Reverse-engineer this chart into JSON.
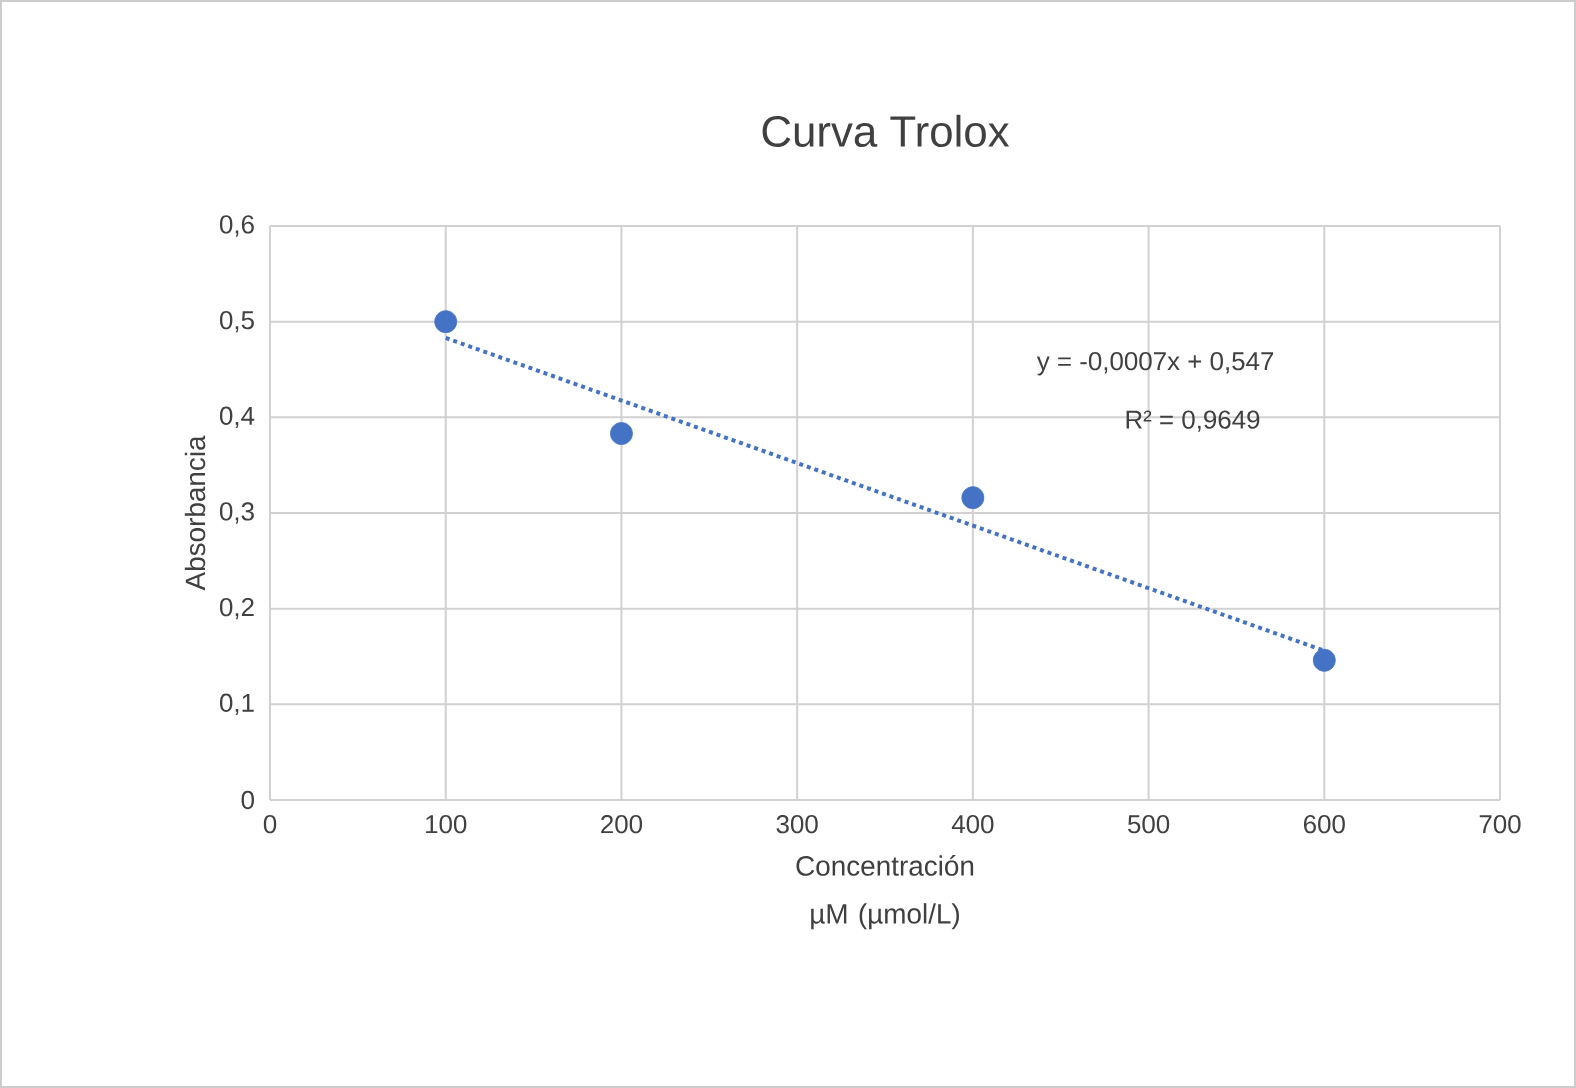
{
  "chart_data": {
    "type": "scatter",
    "title": "Curva Trolox",
    "xlabel": "Concentración µM (µmol/L)",
    "ylabel": "Absorbancia",
    "x": [
      100,
      200,
      400,
      600
    ],
    "series": [
      {
        "color": "#4472c4",
        "values": [
          0.5,
          0.383,
          0.316,
          0.146
        ],
        "marker": "circle"
      },
      {
        "type": "line",
        "color": "#4472c4",
        "x": [
          100,
          600
        ],
        "values": [
          0.483,
          0.156
        ],
        "marker": "none",
        "line_style": "dotted"
      }
    ],
    "xlim": [
      0,
      700
    ],
    "xticks": [
      0,
      100,
      200,
      300,
      400,
      500,
      600,
      700
    ],
    "ylim": [
      0,
      0.6
    ],
    "yticks": [
      {
        "value": 0,
        "label": "0"
      },
      {
        "value": 0.1,
        "label": "0,1"
      },
      {
        "value": 0.2,
        "label": "0,2"
      },
      {
        "value": 0.3,
        "label": "0,3"
      },
      {
        "value": 0.4,
        "label": "0,4"
      },
      {
        "value": 0.5,
        "label": "0,5"
      },
      {
        "value": 0.6,
        "label": "0,6"
      }
    ],
    "grid": true,
    "annotations": [
      "y = -0,0007x + 0,547",
      "R² = 0,9649"
    ]
  }
}
